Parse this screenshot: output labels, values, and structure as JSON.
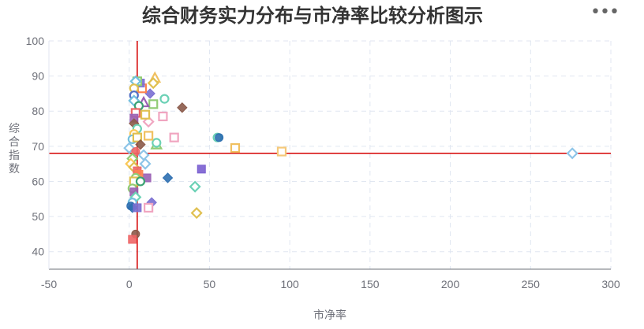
{
  "menu": {
    "more_icon": "more-horizontal-icon",
    "glyph": "•••"
  },
  "chart_data": {
    "type": "scatter",
    "title": "综合财务实力分布与市净率比较分析图示",
    "xlabel": "市净率",
    "ylabel": "综合指数",
    "xlim": [
      -50,
      300
    ],
    "ylim": [
      35,
      100
    ],
    "x_ticks": [
      -50,
      0,
      50,
      100,
      150,
      200,
      250,
      300
    ],
    "y_ticks": [
      40,
      50,
      60,
      70,
      80,
      90,
      100
    ],
    "grid": true,
    "grid_style": "dashed",
    "reference_lines": {
      "x": 5,
      "y": 68,
      "color": "#d40000"
    },
    "point_colors": [
      "#5470c6",
      "#91cc75",
      "#fac858",
      "#ee6666",
      "#73c0de",
      "#3ba272",
      "#fc8452",
      "#9a60b4",
      "#ea7ccc",
      "#6bd1b5",
      "#e5c865",
      "#f0a5c0",
      "#8b5a4a",
      "#2e6fb0",
      "#7a6fd1"
    ],
    "points": [
      {
        "x": 276,
        "y": 68,
        "shape": "diamond",
        "fill": false,
        "color": "#8ec5e8"
      },
      {
        "x": 95,
        "y": 68.5,
        "shape": "square",
        "fill": false,
        "color": "#f5c97a"
      },
      {
        "x": 66,
        "y": 69.5,
        "shape": "square",
        "fill": false,
        "color": "#f0c060"
      },
      {
        "x": 55,
        "y": 72.5,
        "shape": "circle",
        "fill": false,
        "color": "#6bd1b5"
      },
      {
        "x": 56,
        "y": 72.5,
        "shape": "circle",
        "fill": true,
        "color": "#2e6fb0"
      },
      {
        "x": 42,
        "y": 51,
        "shape": "diamond",
        "fill": false,
        "color": "#e0c050"
      },
      {
        "x": 41,
        "y": 58.5,
        "shape": "diamond",
        "fill": false,
        "color": "#6bd1b5"
      },
      {
        "x": 45,
        "y": 63.5,
        "shape": "square",
        "fill": true,
        "color": "#7a5fd0"
      },
      {
        "x": 33,
        "y": 81,
        "shape": "diamond",
        "fill": true,
        "color": "#8b5a4a"
      },
      {
        "x": 28,
        "y": 72.5,
        "shape": "square",
        "fill": false,
        "color": "#f0a5c0"
      },
      {
        "x": 24,
        "y": 61,
        "shape": "diamond",
        "fill": true,
        "color": "#2e6fb0"
      },
      {
        "x": 22,
        "y": 83.5,
        "shape": "circle",
        "fill": false,
        "color": "#6bd1b5"
      },
      {
        "x": 21,
        "y": 78.5,
        "shape": "square",
        "fill": false,
        "color": "#f0a5c0"
      },
      {
        "x": 16,
        "y": 89.5,
        "shape": "triangle",
        "fill": false,
        "color": "#f0c060"
      },
      {
        "x": 15,
        "y": 88,
        "shape": "diamond",
        "fill": false,
        "color": "#e0c050"
      },
      {
        "x": 15,
        "y": 82,
        "shape": "square",
        "fill": false,
        "color": "#91cc75"
      },
      {
        "x": 13,
        "y": 85,
        "shape": "diamond",
        "fill": true,
        "color": "#7a6fd1"
      },
      {
        "x": 17,
        "y": 70.5,
        "shape": "triangle",
        "fill": false,
        "color": "#91cc75"
      },
      {
        "x": 17,
        "y": 71,
        "shape": "circle",
        "fill": false,
        "color": "#6bd1b5"
      },
      {
        "x": 14,
        "y": 54,
        "shape": "diamond",
        "fill": true,
        "color": "#7a6fd1"
      },
      {
        "x": 12,
        "y": 52.5,
        "shape": "square",
        "fill": false,
        "color": "#f0a5c0"
      },
      {
        "x": 11,
        "y": 61,
        "shape": "square",
        "fill": true,
        "color": "#9a60b4"
      },
      {
        "x": 12,
        "y": 73,
        "shape": "square",
        "fill": false,
        "color": "#f0c060"
      },
      {
        "x": 12,
        "y": 77,
        "shape": "diamond",
        "fill": false,
        "color": "#f0a5c0"
      },
      {
        "x": 10,
        "y": 79,
        "shape": "square",
        "fill": false,
        "color": "#e0c050"
      },
      {
        "x": 10,
        "y": 65,
        "shape": "diamond",
        "fill": false,
        "color": "#8ec5e8"
      },
      {
        "x": 9,
        "y": 67.5,
        "shape": "diamond",
        "fill": false,
        "color": "#8ec5e8"
      },
      {
        "x": 9,
        "y": 82.5,
        "shape": "triangle",
        "fill": false,
        "color": "#9a60b4"
      },
      {
        "x": 8,
        "y": 86.5,
        "shape": "square",
        "fill": false,
        "color": "#fc8452"
      },
      {
        "x": 7,
        "y": 88,
        "shape": "square",
        "fill": true,
        "color": "#7a6fd1"
      },
      {
        "x": 5,
        "y": 88.5,
        "shape": "square",
        "fill": false,
        "color": "#91cc75"
      },
      {
        "x": 4,
        "y": 88.5,
        "shape": "diamond",
        "fill": false,
        "color": "#73c0de"
      },
      {
        "x": 3,
        "y": 86.5,
        "shape": "circle",
        "fill": false,
        "color": "#e0c050"
      },
      {
        "x": 3,
        "y": 84.5,
        "shape": "circle",
        "fill": false,
        "color": "#5470c6"
      },
      {
        "x": 3,
        "y": 83,
        "shape": "diamond",
        "fill": false,
        "color": "#73c0de"
      },
      {
        "x": 6,
        "y": 81.5,
        "shape": "circle",
        "fill": false,
        "color": "#3ba272"
      },
      {
        "x": 4,
        "y": 79.5,
        "shape": "square",
        "fill": false,
        "color": "#ee6666"
      },
      {
        "x": 3,
        "y": 78,
        "shape": "square",
        "fill": true,
        "color": "#9a60b4"
      },
      {
        "x": 3,
        "y": 76.5,
        "shape": "diamond",
        "fill": true,
        "color": "#8b5a4a"
      },
      {
        "x": 5,
        "y": 75,
        "shape": "circle",
        "fill": false,
        "color": "#6bd1b5"
      },
      {
        "x": 3,
        "y": 73.5,
        "shape": "circle",
        "fill": false,
        "color": "#fac858"
      },
      {
        "x": 2,
        "y": 72,
        "shape": "circle",
        "fill": false,
        "color": "#73c0de"
      },
      {
        "x": 5,
        "y": 72.5,
        "shape": "square",
        "fill": false,
        "color": "#e0c050"
      },
      {
        "x": 7,
        "y": 70.5,
        "shape": "diamond",
        "fill": true,
        "color": "#8b5a4a"
      },
      {
        "x": 0,
        "y": 69.5,
        "shape": "diamond",
        "fill": false,
        "color": "#8ec5e8"
      },
      {
        "x": 4,
        "y": 68.5,
        "shape": "circle",
        "fill": true,
        "color": "#ee6666"
      },
      {
        "x": 2,
        "y": 66.5,
        "shape": "diamond",
        "fill": false,
        "color": "#91cc75"
      },
      {
        "x": 1,
        "y": 65,
        "shape": "diamond",
        "fill": false,
        "color": "#fac858"
      },
      {
        "x": 3,
        "y": 64,
        "shape": "diamond",
        "fill": false,
        "color": "#e0c050"
      },
      {
        "x": 5,
        "y": 63,
        "shape": "square",
        "fill": true,
        "color": "#ee6666"
      },
      {
        "x": 6,
        "y": 62,
        "shape": "square",
        "fill": true,
        "color": "#fc8452"
      },
      {
        "x": 4,
        "y": 61,
        "shape": "circle",
        "fill": false,
        "color": "#91cc75"
      },
      {
        "x": 3,
        "y": 60,
        "shape": "square",
        "fill": false,
        "color": "#e0c050"
      },
      {
        "x": 7,
        "y": 60,
        "shape": "circle",
        "fill": false,
        "color": "#3ba272"
      },
      {
        "x": 2,
        "y": 58,
        "shape": "circle",
        "fill": false,
        "color": "#91cc75"
      },
      {
        "x": 3,
        "y": 57,
        "shape": "square",
        "fill": true,
        "color": "#9a60b4"
      },
      {
        "x": 4,
        "y": 55.5,
        "shape": "diamond",
        "fill": false,
        "color": "#6bd1b5"
      },
      {
        "x": 2,
        "y": 54,
        "shape": "circle",
        "fill": false,
        "color": "#73c0de"
      },
      {
        "x": 1,
        "y": 53,
        "shape": "circle",
        "fill": true,
        "color": "#2e6fb0"
      },
      {
        "x": 2,
        "y": 52.5,
        "shape": "diamond",
        "fill": true,
        "color": "#2e6fb0"
      },
      {
        "x": 5,
        "y": 52.5,
        "shape": "square",
        "fill": true,
        "color": "#7a6fd1"
      },
      {
        "x": 4,
        "y": 45,
        "shape": "circle",
        "fill": true,
        "color": "#8b5a4a"
      },
      {
        "x": 2,
        "y": 43.5,
        "shape": "square",
        "fill": true,
        "color": "#ee6666"
      }
    ]
  }
}
